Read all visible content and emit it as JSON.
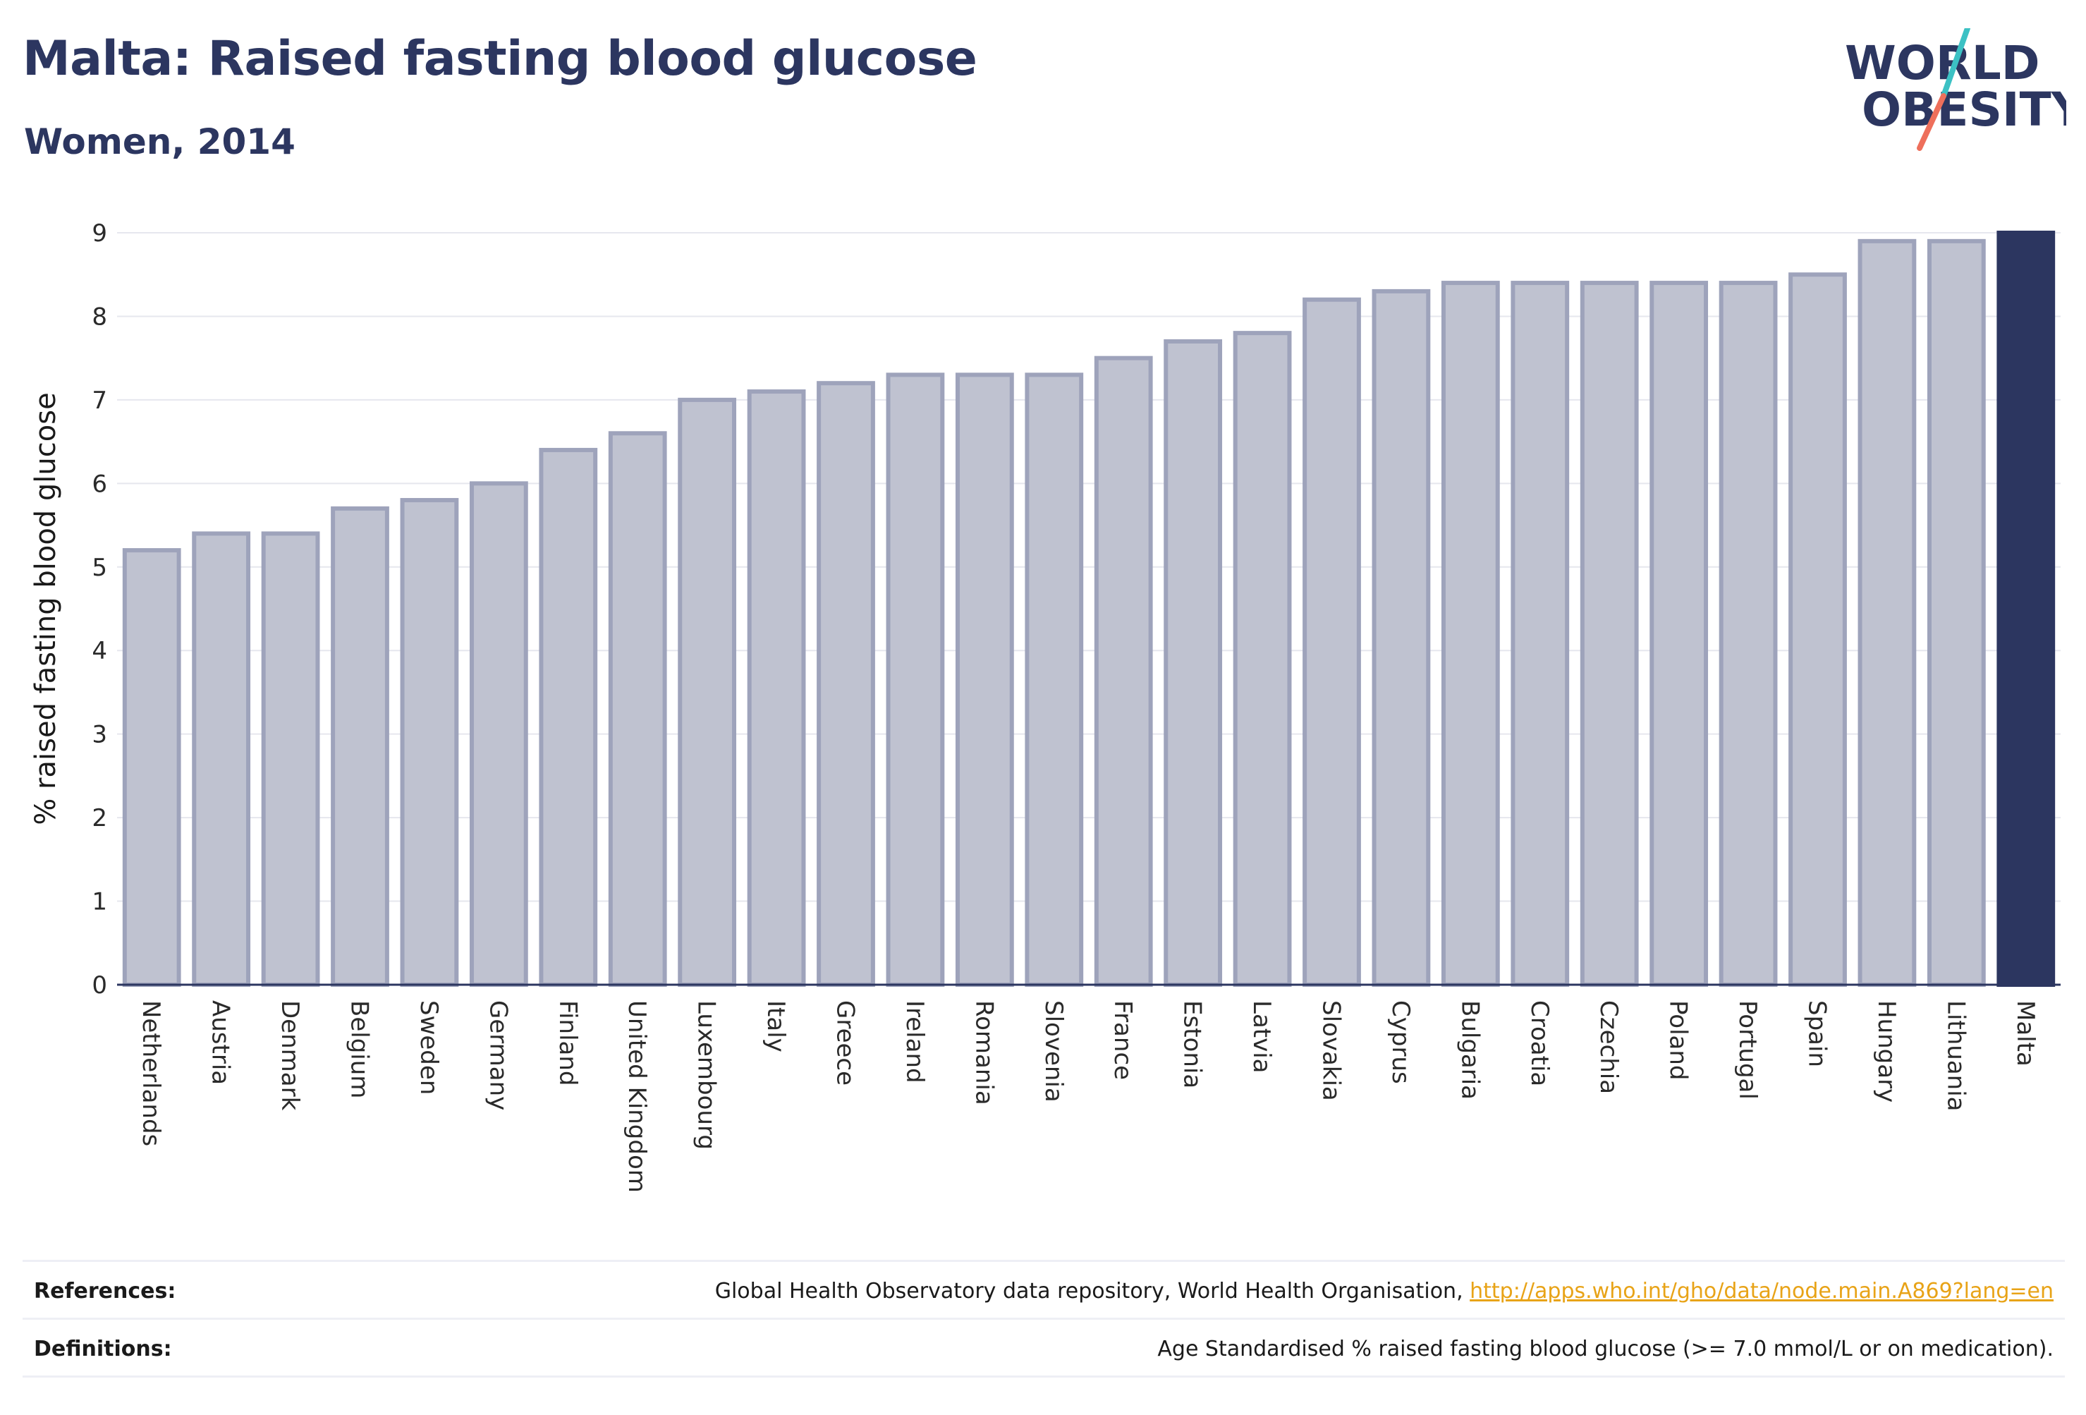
{
  "header": {
    "title": "Malta: Raised fasting blood glucose",
    "subtitle": "Women, 2014"
  },
  "logo": {
    "line1": "WORLD",
    "line2": "OBESITY"
  },
  "colors": {
    "highlight": "#2c3660",
    "bar_fill": "#bfc2d0",
    "bar_stroke": "#9ea3bb",
    "title": "#2c3660",
    "link": "#e8a317"
  },
  "chart_data": {
    "type": "bar",
    "title": "Malta: Raised fasting blood glucose",
    "subtitle": "Women, 2014",
    "xlabel": "",
    "ylabel": "% raised fasting blood glucose",
    "ylim": [
      0,
      9
    ],
    "yticks": [
      0,
      1,
      2,
      3,
      4,
      5,
      6,
      7,
      8,
      9
    ],
    "grid": true,
    "highlight": "Malta",
    "categories": [
      "Netherlands",
      "Austria",
      "Denmark",
      "Belgium",
      "Sweden",
      "Germany",
      "Finland",
      "United Kingdom",
      "Luxembourg",
      "Italy",
      "Greece",
      "Ireland",
      "Romania",
      "Slovenia",
      "France",
      "Estonia",
      "Latvia",
      "Slovakia",
      "Cyprus",
      "Bulgaria",
      "Croatia",
      "Czechia",
      "Poland",
      "Portugal",
      "Spain",
      "Hungary",
      "Lithuania",
      "Malta"
    ],
    "values": [
      5.2,
      5.4,
      5.4,
      5.7,
      5.8,
      6.0,
      6.4,
      6.6,
      7.0,
      7.1,
      7.2,
      7.3,
      7.3,
      7.3,
      7.5,
      7.7,
      7.8,
      8.2,
      8.3,
      8.4,
      8.4,
      8.4,
      8.4,
      8.4,
      8.5,
      8.9,
      8.9,
      9.0
    ]
  },
  "footer": {
    "references_label": "References:",
    "references_text": "Global Health Observatory data repository, World Health Organisation, ",
    "references_link": "http://apps.who.int/gho/data/node.main.A869?lang=en",
    "definitions_label": "Definitions:",
    "definitions_text": "Age Standardised % raised fasting blood glucose (>= 7.0 mmol/L or on medication)."
  }
}
